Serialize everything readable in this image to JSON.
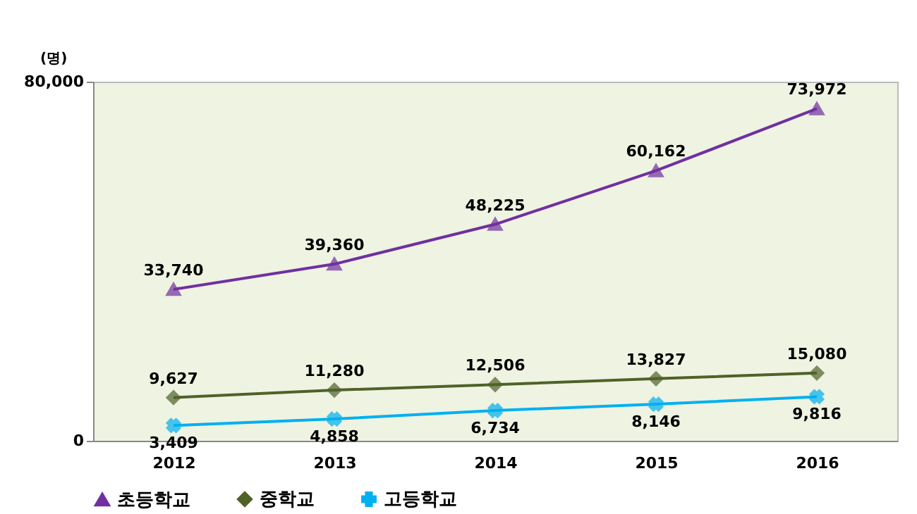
{
  "chart_data": {
    "type": "line",
    "ylabel": "(명)",
    "categories": [
      "2012",
      "2013",
      "2014",
      "2015",
      "2016"
    ],
    "series": [
      {
        "name": "초등학교",
        "color": "#7030a0",
        "marker": "triangle",
        "values": [
          33740,
          39360,
          48225,
          60162,
          73972
        ],
        "value_labels": [
          "33,740",
          "39,360",
          "48,225",
          "60,162",
          "73,972"
        ]
      },
      {
        "name": "중학교",
        "color": "#4f6228",
        "marker": "diamond",
        "values": [
          9627,
          11280,
          12506,
          13827,
          15080
        ],
        "value_labels": [
          "9,627",
          "11,280",
          "12,506",
          "13,827",
          "15,080"
        ]
      },
      {
        "name": "고등학교",
        "color": "#00b0f0",
        "marker": "cross",
        "values": [
          3409,
          4858,
          6734,
          8146,
          9816
        ],
        "value_labels": [
          "3,409",
          "4,858",
          "6,734",
          "8,146",
          "9,816"
        ]
      }
    ],
    "ylim": [
      0,
      80000
    ],
    "yticks": [
      0,
      {
        "value": 80000,
        "label": "80,000"
      }
    ],
    "legend": "bottom",
    "grid": false
  }
}
